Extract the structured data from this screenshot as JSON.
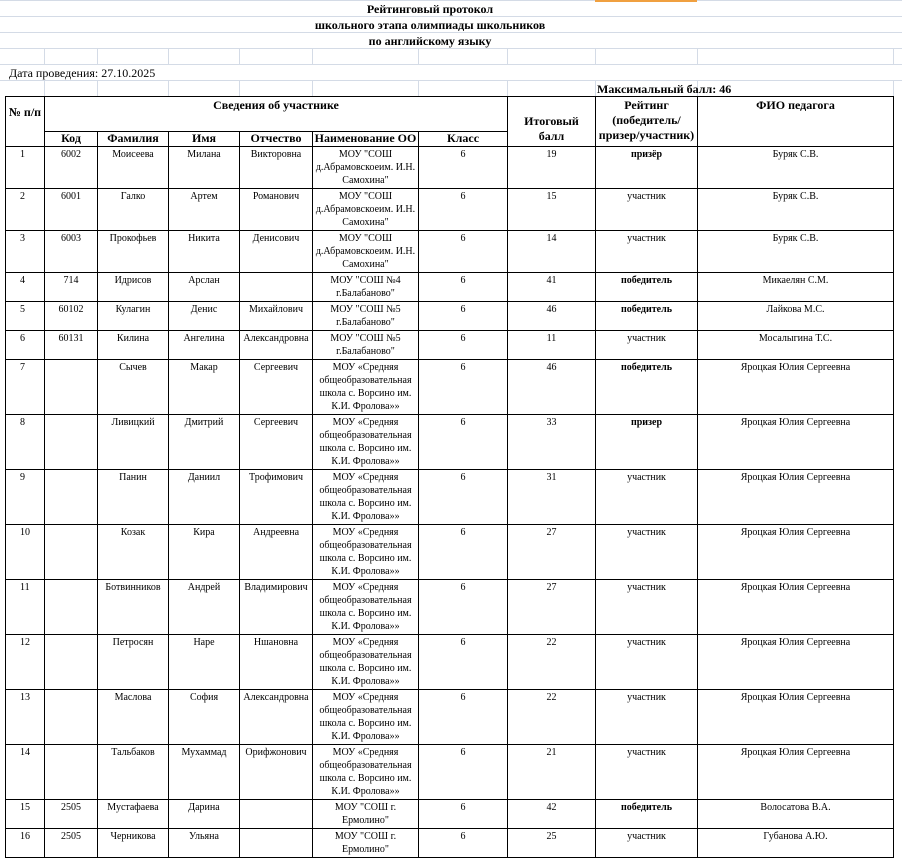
{
  "title_lines": [
    "Рейтинговый протокол",
    "школьного этапа  олимпиады школьников",
    "по  английскому языку"
  ],
  "date_label": "Дата проведения: 27.10.2025",
  "max_score_label": "Максимальный балл: 46",
  "headers": {
    "num": "№ п/п",
    "participant_info": "Сведения об участнике",
    "code": "Код",
    "surname": "Фамилия",
    "name": "Имя",
    "patronymic": "Отчество",
    "school": "Наименование ОО",
    "grade": "Класс",
    "total": "Итоговый балл",
    "rating": "Рейтинг (победитель/призер/участник)",
    "teacher": "ФИО  педагога"
  },
  "rows": [
    {
      "n": "1",
      "code": "6002",
      "surname": "Моисеева",
      "name": "Милана",
      "patronymic": "Викторовна",
      "school": "МОУ \"СОШ д.Абрамовскоеим. И.Н. Самохина\"",
      "grade": "6",
      "score": "19",
      "rating": "призёр",
      "bold": true,
      "teacher": "Буряк С.В."
    },
    {
      "n": "2",
      "code": "6001",
      "surname": "Галко",
      "name": "Артем",
      "patronymic": "Романович",
      "school": "МОУ \"СОШ д.Абрамовскоеим. И.Н. Самохина\"",
      "grade": "6",
      "score": "15",
      "rating": "участник",
      "bold": false,
      "teacher": "Буряк С.В."
    },
    {
      "n": "3",
      "code": "6003",
      "surname": "Прокофьев",
      "name": "Никита",
      "patronymic": "Денисович",
      "school": "МОУ \"СОШ д.Абрамовскоеим. И.Н. Самохина\"",
      "grade": "6",
      "score": "14",
      "rating": "участник",
      "bold": false,
      "teacher": "Буряк С.В."
    },
    {
      "n": "4",
      "code": "714",
      "surname": "Идрисов",
      "name": "Арслан",
      "patronymic": "",
      "school": "МОУ \"СОШ №4 г.Балабаново\"",
      "grade": "6",
      "score": "41",
      "rating": "победитель",
      "bold": true,
      "teacher": "Микаелян С.М."
    },
    {
      "n": "5",
      "code": "60102",
      "surname": "Кулагин",
      "name": "Денис",
      "patronymic": "Михайлович",
      "school": "МОУ \"СОШ №5 г.Балабаново\"",
      "grade": "6",
      "score": "46",
      "rating": "победитель",
      "bold": true,
      "teacher": "Лайкова М.С."
    },
    {
      "n": "6",
      "code": "60131",
      "surname": "Килина",
      "name": "Ангелина",
      "patronymic": "Александровна",
      "school": "МОУ \"СОШ №5 г.Балабаново\"",
      "grade": "6",
      "score": "11",
      "rating": "участник",
      "bold": false,
      "teacher": "Мосалыгина Т.С."
    },
    {
      "n": "7",
      "code": "",
      "surname": "Сычев",
      "name": "Макар",
      "patronymic": "Сергеевич",
      "school": "МОУ «Средняя общеобразовательная школа с. Ворсино им. К.И. Фролова»»",
      "grade": "6",
      "score": "46",
      "rating": "победитель",
      "bold": true,
      "teacher": "Яроцкая Юлия Сергеевна"
    },
    {
      "n": "8",
      "code": "",
      "surname": "Ливицкий",
      "name": "Дмитрий",
      "patronymic": "Сергеевич",
      "school": "МОУ «Средняя общеобразовательная школа с. Ворсино им. К.И. Фролова»»",
      "grade": "6",
      "score": "33",
      "rating": "призер",
      "bold": true,
      "teacher": "Яроцкая Юлия Сергеевна"
    },
    {
      "n": "9",
      "code": "",
      "surname": "Панин",
      "name": "Даниил",
      "patronymic": "Трофимович",
      "school": "МОУ «Средняя общеобразовательная школа с. Ворсино им. К.И. Фролова»»",
      "grade": "6",
      "score": "31",
      "rating": "участник",
      "bold": false,
      "teacher": "Яроцкая Юлия Сергеевна"
    },
    {
      "n": "10",
      "code": "",
      "surname": "Козак",
      "name": "Кира",
      "patronymic": "Андреевна",
      "school": "МОУ «Средняя общеобразовательная школа с. Ворсино им. К.И. Фролова»»",
      "grade": "6",
      "score": "27",
      "rating": "участник",
      "bold": false,
      "teacher": "Яроцкая Юлия Сергеевна"
    },
    {
      "n": "11",
      "code": "",
      "surname": "Ботвинников",
      "name": "Андрей",
      "patronymic": "Владимирович",
      "school": "МОУ «Средняя общеобразовательная школа с. Ворсино им. К.И. Фролова»»",
      "grade": "6",
      "score": "27",
      "rating": "участник",
      "bold": false,
      "teacher": "Яроцкая Юлия Сергеевна"
    },
    {
      "n": "12",
      "code": "",
      "surname": "Петросян",
      "name": "Наре",
      "patronymic": "Ншановна",
      "school": "МОУ «Средняя общеобразовательная школа с. Ворсино им. К.И. Фролова»»",
      "grade": "6",
      "score": "22",
      "rating": "участник",
      "bold": false,
      "teacher": "Яроцкая Юлия Сергеевна"
    },
    {
      "n": "13",
      "code": "",
      "surname": "Маслова",
      "name": "София",
      "patronymic": "Александровна",
      "school": "МОУ «Средняя общеобразовательная школа с. Ворсино им. К.И. Фролова»»",
      "grade": "6",
      "score": "22",
      "rating": "участник",
      "bold": false,
      "teacher": "Яроцкая Юлия Сергеевна"
    },
    {
      "n": "14",
      "code": "",
      "surname": "Тальбаков",
      "name": "Мухаммад",
      "patronymic": "Орифжонович",
      "school": "МОУ «Средняя общеобразовательная школа с. Ворсино им. К.И. Фролова»»",
      "grade": "6",
      "score": "21",
      "rating": "участник",
      "bold": false,
      "teacher": "Яроцкая Юлия Сергеевна"
    },
    {
      "n": "15",
      "code": "2505",
      "surname": "Мустафаева",
      "name": "Дарина",
      "patronymic": "",
      "school": "МОУ \"СОШ г. Ермолино\"",
      "grade": "6",
      "score": "42",
      "rating": "победитель",
      "bold": true,
      "teacher": "Волосатова В.А."
    },
    {
      "n": "16",
      "code": "2505",
      "surname": "Черникова",
      "name": "Ульяна",
      "patronymic": "",
      "school": "МОУ \"СОШ г. Ермолино\"",
      "grade": "6",
      "score": "25",
      "rating": "участник",
      "bold": false,
      "teacher": "Губанова А.Ю."
    }
  ]
}
